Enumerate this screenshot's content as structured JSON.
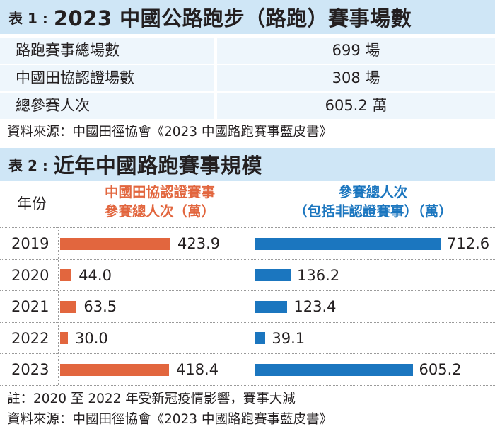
{
  "table1": {
    "prefix": "表 1 :",
    "title": "2023 中國公路跑步（路跑）賽事場數",
    "rows": [
      {
        "label": "路跑賽事總場數",
        "value": "699 場"
      },
      {
        "label": "中國田協認證場數",
        "value": "308 場"
      },
      {
        "label": "總參賽人次",
        "value": "605.2 萬"
      }
    ],
    "source": "資料來源：中國田徑協會《2023 中國路跑賽事藍皮書》"
  },
  "table2": {
    "prefix": "表 2 :",
    "title": "近年中國路跑賽事規模",
    "year_header": "年份",
    "left_header_1": "中國田協認證賽事",
    "left_header_2": "參賽總人次（萬）",
    "right_header_1": "參賽總人次",
    "right_header_2": "（包括非認證賽事）（萬）",
    "note": "註：2020 至 2022 年受新冠疫情影響，賽事大減",
    "source": "資料來源：中國田徑協會《2023 中國路跑賽事藍皮書》"
  },
  "colors": {
    "certified": "#e2663e",
    "total": "#1b76bf",
    "title_band": "#cfe6f6",
    "row_band": "#eef6fc"
  },
  "chart_data": [
    {
      "type": "bar",
      "categories": [
        "2019",
        "2020",
        "2021",
        "2022",
        "2023"
      ],
      "series": [
        {
          "name": "中國田協認證賽事參賽總人次（萬）",
          "values": [
            423.9,
            44.0,
            63.5,
            30.0,
            418.4
          ]
        }
      ],
      "value_labels": [
        "423.9",
        "44.0",
        "63.5",
        "30.0",
        "418.4"
      ]
    },
    {
      "type": "bar",
      "categories": [
        "2019",
        "2020",
        "2021",
        "2022",
        "2023"
      ],
      "series": [
        {
          "name": "參賽總人次（包括非認證賽事）（萬）",
          "values": [
            712.6,
            136.2,
            123.4,
            39.1,
            605.2
          ]
        }
      ],
      "value_labels": [
        "712.6",
        "136.2",
        "123.4",
        "39.1",
        "605.2"
      ]
    }
  ]
}
